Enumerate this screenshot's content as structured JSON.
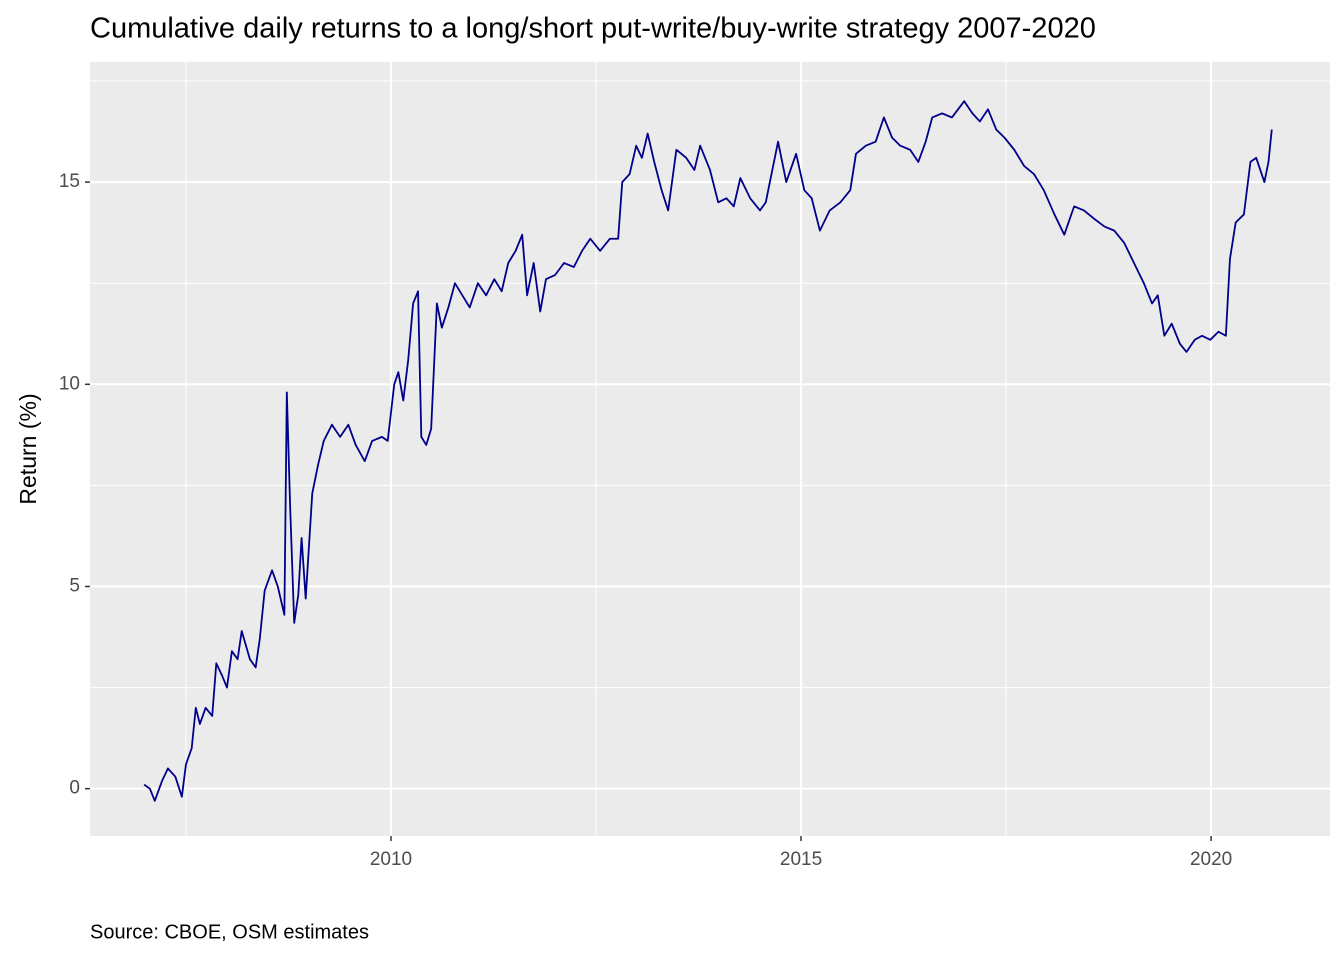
{
  "chart_data": {
    "type": "line",
    "title": "Cumulative daily returns to a long/short put-write/buy-write strategy 2007-2020",
    "y_label": "Return (%)",
    "caption": "Source: CBOE, OSM estimates",
    "xlim": [
      2006.33,
      2021.45
    ],
    "ylim": [
      -1.17,
      17.97
    ],
    "xticks": [
      2010,
      2015,
      2020
    ],
    "yticks": [
      0,
      5,
      10,
      15
    ],
    "minor_xticks": [
      2007.5,
      2012.5,
      2017.5
    ],
    "minor_yticks": [
      2.5,
      7.5,
      12.5,
      17.5
    ],
    "grid": true,
    "x": [
      2006.99,
      2007.06,
      2007.12,
      2007.21,
      2007.28,
      2007.37,
      2007.45,
      2007.5,
      2007.57,
      2007.62,
      2007.67,
      2007.74,
      2007.82,
      2007.87,
      2007.94,
      2008.0,
      2008.06,
      2008.13,
      2008.18,
      2008.28,
      2008.35,
      2008.4,
      2008.46,
      2008.55,
      2008.62,
      2008.7,
      2008.73,
      2008.77,
      2008.82,
      2008.87,
      2008.91,
      2008.96,
      2009.04,
      2009.11,
      2009.18,
      2009.28,
      2009.38,
      2009.48,
      2009.57,
      2009.68,
      2009.77,
      2009.89,
      2009.96,
      2010.04,
      2010.09,
      2010.15,
      2010.21,
      2010.27,
      2010.33,
      2010.37,
      2010.43,
      2010.49,
      2010.56,
      2010.62,
      2010.7,
      2010.78,
      2010.87,
      2010.96,
      2011.06,
      2011.16,
      2011.26,
      2011.35,
      2011.43,
      2011.52,
      2011.6,
      2011.66,
      2011.74,
      2011.82,
      2011.89,
      2012.0,
      2012.11,
      2012.23,
      2012.33,
      2012.43,
      2012.55,
      2012.67,
      2012.77,
      2012.82,
      2012.91,
      2012.99,
      2013.06,
      2013.13,
      2013.21,
      2013.3,
      2013.38,
      2013.48,
      2013.6,
      2013.7,
      2013.77,
      2013.89,
      2013.99,
      2014.09,
      2014.18,
      2014.26,
      2014.38,
      2014.5,
      2014.57,
      2014.65,
      2014.72,
      2014.82,
      2014.94,
      2015.04,
      2015.13,
      2015.23,
      2015.35,
      2015.48,
      2015.6,
      2015.67,
      2015.79,
      2015.91,
      2016.01,
      2016.11,
      2016.21,
      2016.33,
      2016.43,
      2016.52,
      2016.6,
      2016.72,
      2016.84,
      2016.99,
      2017.09,
      2017.18,
      2017.28,
      2017.38,
      2017.48,
      2017.6,
      2017.72,
      2017.84,
      2017.96,
      2018.09,
      2018.21,
      2018.33,
      2018.45,
      2018.57,
      2018.7,
      2018.82,
      2018.94,
      2019.06,
      2019.18,
      2019.28,
      2019.35,
      2019.43,
      2019.52,
      2019.62,
      2019.7,
      2019.8,
      2019.89,
      2019.99,
      2020.09,
      2020.18,
      2020.23,
      2020.3,
      2020.4,
      2020.48,
      2020.55,
      2020.65,
      2020.7,
      2020.74
    ],
    "series": [
      {
        "color": "#00008b",
        "values": [
          0.1,
          0.0,
          -0.3,
          0.2,
          0.5,
          0.3,
          -0.2,
          0.6,
          1.0,
          2.0,
          1.6,
          2.0,
          1.8,
          3.1,
          2.8,
          2.5,
          3.4,
          3.2,
          3.9,
          3.2,
          3.0,
          3.7,
          4.9,
          5.4,
          5.0,
          4.3,
          9.8,
          7.0,
          4.1,
          4.8,
          6.2,
          4.7,
          7.3,
          8.0,
          8.6,
          9.0,
          8.7,
          9.0,
          8.5,
          8.1,
          8.6,
          8.7,
          8.6,
          10.0,
          10.3,
          9.6,
          10.6,
          12.0,
          12.3,
          8.7,
          8.5,
          8.9,
          12.0,
          11.4,
          11.9,
          12.5,
          12.2,
          11.9,
          12.5,
          12.2,
          12.6,
          12.3,
          13.0,
          13.3,
          13.7,
          12.2,
          13.0,
          11.8,
          12.6,
          12.7,
          13.0,
          12.9,
          13.3,
          13.6,
          13.3,
          13.6,
          13.6,
          15.0,
          15.2,
          15.9,
          15.6,
          16.2,
          15.5,
          14.8,
          14.3,
          15.8,
          15.6,
          15.3,
          15.9,
          15.3,
          14.5,
          14.6,
          14.4,
          15.1,
          14.6,
          14.3,
          14.5,
          15.3,
          16.0,
          15.0,
          15.7,
          14.8,
          14.6,
          13.8,
          14.3,
          14.5,
          14.8,
          15.7,
          15.9,
          16.0,
          16.6,
          16.1,
          15.9,
          15.8,
          15.5,
          16.0,
          16.6,
          16.7,
          16.6,
          17.0,
          16.7,
          16.5,
          16.8,
          16.3,
          16.1,
          15.8,
          15.4,
          15.2,
          14.8,
          14.2,
          13.7,
          14.4,
          14.3,
          14.1,
          13.9,
          13.8,
          13.5,
          13.0,
          12.5,
          12.0,
          12.2,
          11.2,
          11.5,
          11.0,
          10.8,
          11.1,
          11.2,
          11.1,
          11.3,
          11.2,
          13.1,
          14.0,
          14.2,
          15.5,
          15.6,
          15.0,
          15.5,
          16.3
        ]
      }
    ]
  }
}
